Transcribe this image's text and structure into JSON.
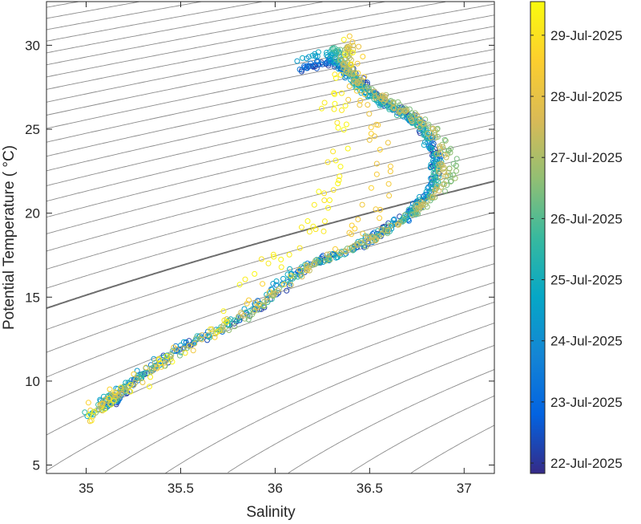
{
  "chart_data": {
    "type": "scatter",
    "title": "",
    "xlabel": "Salinity",
    "ylabel": "Potential Temperature ( °C)",
    "xlim": [
      34.79,
      37.16
    ],
    "ylim": [
      4.5,
      32.6
    ],
    "xticks": [
      {
        "v": 35,
        "label": "35"
      },
      {
        "v": 35.5,
        "label": "35.5"
      },
      {
        "v": 36,
        "label": "36"
      },
      {
        "v": 36.5,
        "label": "36.5"
      },
      {
        "v": 37,
        "label": "37"
      }
    ],
    "yticks": [
      {
        "v": 5,
        "label": "5"
      },
      {
        "v": 10,
        "label": "10"
      },
      {
        "v": 15,
        "label": "15"
      },
      {
        "v": 20,
        "label": "20"
      },
      {
        "v": 25,
        "label": "25"
      },
      {
        "v": 30,
        "label": "30"
      }
    ],
    "density_contours": {
      "interval": 0.25,
      "highlight_sigma": 26,
      "color": "#8c8c8c",
      "highlight_color": "#6e6e6e"
    },
    "colorbar": {
      "colormap": "parula",
      "clim_day_of_july": [
        21.83,
        29.55
      ],
      "ticks": [
        {
          "v": 22,
          "label": "22-Jul-2025"
        },
        {
          "v": 23,
          "label": "23-Jul-2025"
        },
        {
          "v": 24,
          "label": "24-Jul-2025"
        },
        {
          "v": 25,
          "label": "25-Jul-2025"
        },
        {
          "v": 26,
          "label": "26-Jul-2025"
        },
        {
          "v": 27,
          "label": "27-Jul-2025"
        },
        {
          "v": 28,
          "label": "28-Jul-2025"
        },
        {
          "v": 29,
          "label": "29-Jul-2025"
        }
      ]
    },
    "series": [
      {
        "day": 22.3,
        "points": [
          [
            36.13,
            28.4
          ],
          [
            36.25,
            28.9
          ],
          [
            36.4,
            28.6
          ],
          [
            36.5,
            27.3
          ],
          [
            36.62,
            26.4
          ],
          [
            36.75,
            25.5
          ],
          [
            36.85,
            23.5
          ],
          [
            36.84,
            21.5
          ],
          [
            36.72,
            20
          ],
          [
            36.5,
            18.3
          ],
          [
            36.2,
            17
          ],
          [
            35.9,
            14.1
          ],
          [
            35.5,
            11.9
          ],
          [
            35.2,
            9.5
          ],
          [
            35.12,
            8.3
          ]
        ]
      },
      {
        "day": 23.4,
        "points": [
          [
            36.15,
            28.7
          ],
          [
            36.3,
            29.2
          ],
          [
            36.38,
            28.3
          ],
          [
            36.5,
            27.1
          ],
          [
            36.65,
            26.2
          ],
          [
            36.8,
            25
          ],
          [
            36.86,
            23.2
          ],
          [
            36.83,
            21.4
          ],
          [
            36.7,
            19.8
          ],
          [
            36.45,
            18.1
          ],
          [
            36.15,
            16.8
          ],
          [
            35.85,
            13.9
          ],
          [
            35.45,
            11.7
          ],
          [
            35.18,
            9.2
          ],
          [
            35.1,
            8.4
          ]
        ]
      },
      {
        "day": 24.6,
        "points": [
          [
            36.1,
            29.1
          ],
          [
            36.3,
            29.6
          ],
          [
            36.36,
            28.4
          ],
          [
            36.48,
            27.2
          ],
          [
            36.62,
            26.3
          ],
          [
            36.78,
            25.1
          ],
          [
            36.84,
            23.4
          ],
          [
            36.82,
            21.4
          ],
          [
            36.7,
            19.9
          ],
          [
            36.45,
            18.1
          ],
          [
            36.1,
            16.6
          ],
          [
            35.8,
            13.8
          ],
          [
            35.4,
            11.4
          ],
          [
            35.12,
            9.0
          ],
          [
            35.02,
            8.0
          ]
        ]
      },
      {
        "day": 25.6,
        "points": [
          [
            36.3,
            29.9
          ],
          [
            36.35,
            28.8
          ],
          [
            36.45,
            27.4
          ],
          [
            36.6,
            26.3
          ],
          [
            36.76,
            25.3
          ],
          [
            36.86,
            23.6
          ],
          [
            36.85,
            21.6
          ],
          [
            36.72,
            20
          ],
          [
            36.48,
            18.2
          ],
          [
            36.15,
            16.7
          ],
          [
            35.85,
            14
          ],
          [
            35.45,
            11.6
          ],
          [
            35.15,
            9.1
          ],
          [
            35.0,
            7.9
          ]
        ]
      },
      {
        "day": 26.6,
        "points": [
          [
            36.35,
            30.0
          ],
          [
            36.38,
            28.6
          ],
          [
            36.5,
            27.5
          ],
          [
            36.68,
            26.1
          ],
          [
            36.85,
            25
          ],
          [
            36.95,
            23.2
          ],
          [
            36.92,
            21.8
          ],
          [
            36.76,
            20.2
          ],
          [
            36.5,
            18.3
          ],
          [
            36.2,
            16.9
          ],
          [
            35.9,
            14.2
          ],
          [
            35.5,
            11.8
          ],
          [
            35.2,
            9.4
          ],
          [
            35.05,
            8.2
          ]
        ]
      },
      {
        "day": 27.4,
        "points": [
          [
            36.4,
            30.2
          ],
          [
            36.38,
            28.9
          ],
          [
            36.45,
            27.6
          ],
          [
            36.62,
            26.4
          ],
          [
            36.8,
            25.2
          ],
          [
            36.9,
            23.2
          ],
          [
            36.86,
            21.4
          ],
          [
            36.74,
            20.1
          ],
          [
            36.5,
            18.4
          ],
          [
            36.2,
            17
          ],
          [
            35.9,
            14.4
          ],
          [
            35.5,
            12
          ],
          [
            35.2,
            9.6
          ],
          [
            35.05,
            8.3
          ]
        ]
      },
      {
        "day": 28.4,
        "points": [
          [
            36.45,
            30.3
          ],
          [
            36.4,
            28.5
          ],
          [
            36.45,
            26.5
          ],
          [
            36.55,
            24.5
          ],
          [
            36.6,
            22
          ],
          [
            36.5,
            20
          ],
          [
            36.3,
            18
          ],
          [
            35.9,
            15.2
          ],
          [
            35.5,
            11.8
          ],
          [
            35.1,
            8.9
          ],
          [
            35.03,
            7.5
          ]
        ]
      },
      {
        "day": 29.3,
        "points": [
          [
            36.42,
            30.2
          ],
          [
            36.35,
            28
          ],
          [
            36.3,
            26
          ],
          [
            36.35,
            24
          ],
          [
            36.3,
            22
          ],
          [
            36.25,
            20
          ],
          [
            36.15,
            18.5
          ],
          [
            35.95,
            16.8
          ],
          [
            35.7,
            13.5
          ],
          [
            35.4,
            11
          ],
          [
            35.15,
            9
          ],
          [
            35.0,
            7.7
          ]
        ]
      }
    ]
  }
}
